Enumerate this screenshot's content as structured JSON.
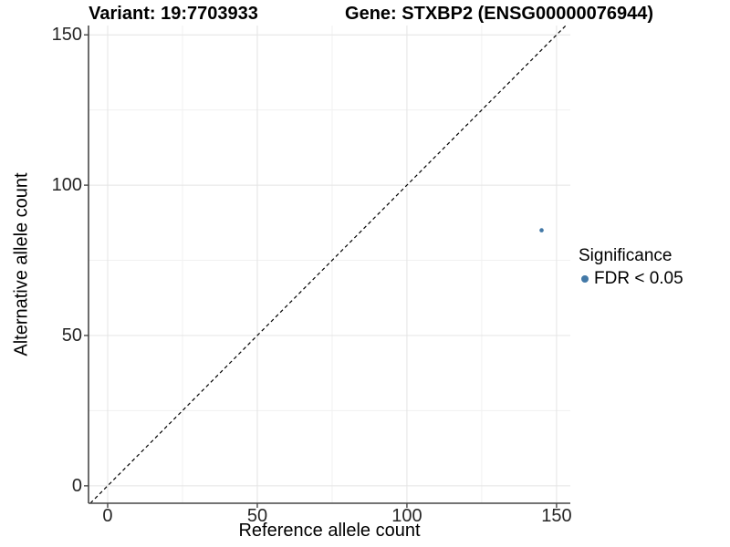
{
  "chart_data": {
    "type": "scatter",
    "title_left": "Variant: 19:7703933",
    "title_right": "Gene: STXBP2 (ENSG00000076944)",
    "xlabel": "Reference allele count",
    "ylabel": "Alternative allele count",
    "x_ticks": [
      0,
      50,
      100,
      150
    ],
    "y_ticks": [
      0,
      50,
      100,
      150
    ],
    "x_minor_ticks": [
      25,
      75,
      125
    ],
    "y_minor_ticks": [
      25,
      75,
      125
    ],
    "xlim": [
      -6.4,
      154.6
    ],
    "ylim": [
      -5.8,
      153.1
    ],
    "grid": "major and minor gridlines, light gray on white panel",
    "reference_line": {
      "type": "identity y=x",
      "style": "dashed",
      "color": "#000000"
    },
    "points": [
      {
        "x": 145,
        "y": 85,
        "significance": "FDR < 0.05"
      }
    ],
    "point_radius_px": 2.3,
    "legend": {
      "title": "Significance",
      "position": "right",
      "entries": [
        {
          "label": "FDR < 0.05",
          "color": "#4379a7"
        }
      ]
    },
    "colors": {
      "point": "#4379a7",
      "grid_major": "#e4e4e4",
      "grid_minor": "#f1f1f1",
      "axis_line": "#474747",
      "tick_mark": "#474747",
      "identity_line": "#000000"
    }
  }
}
